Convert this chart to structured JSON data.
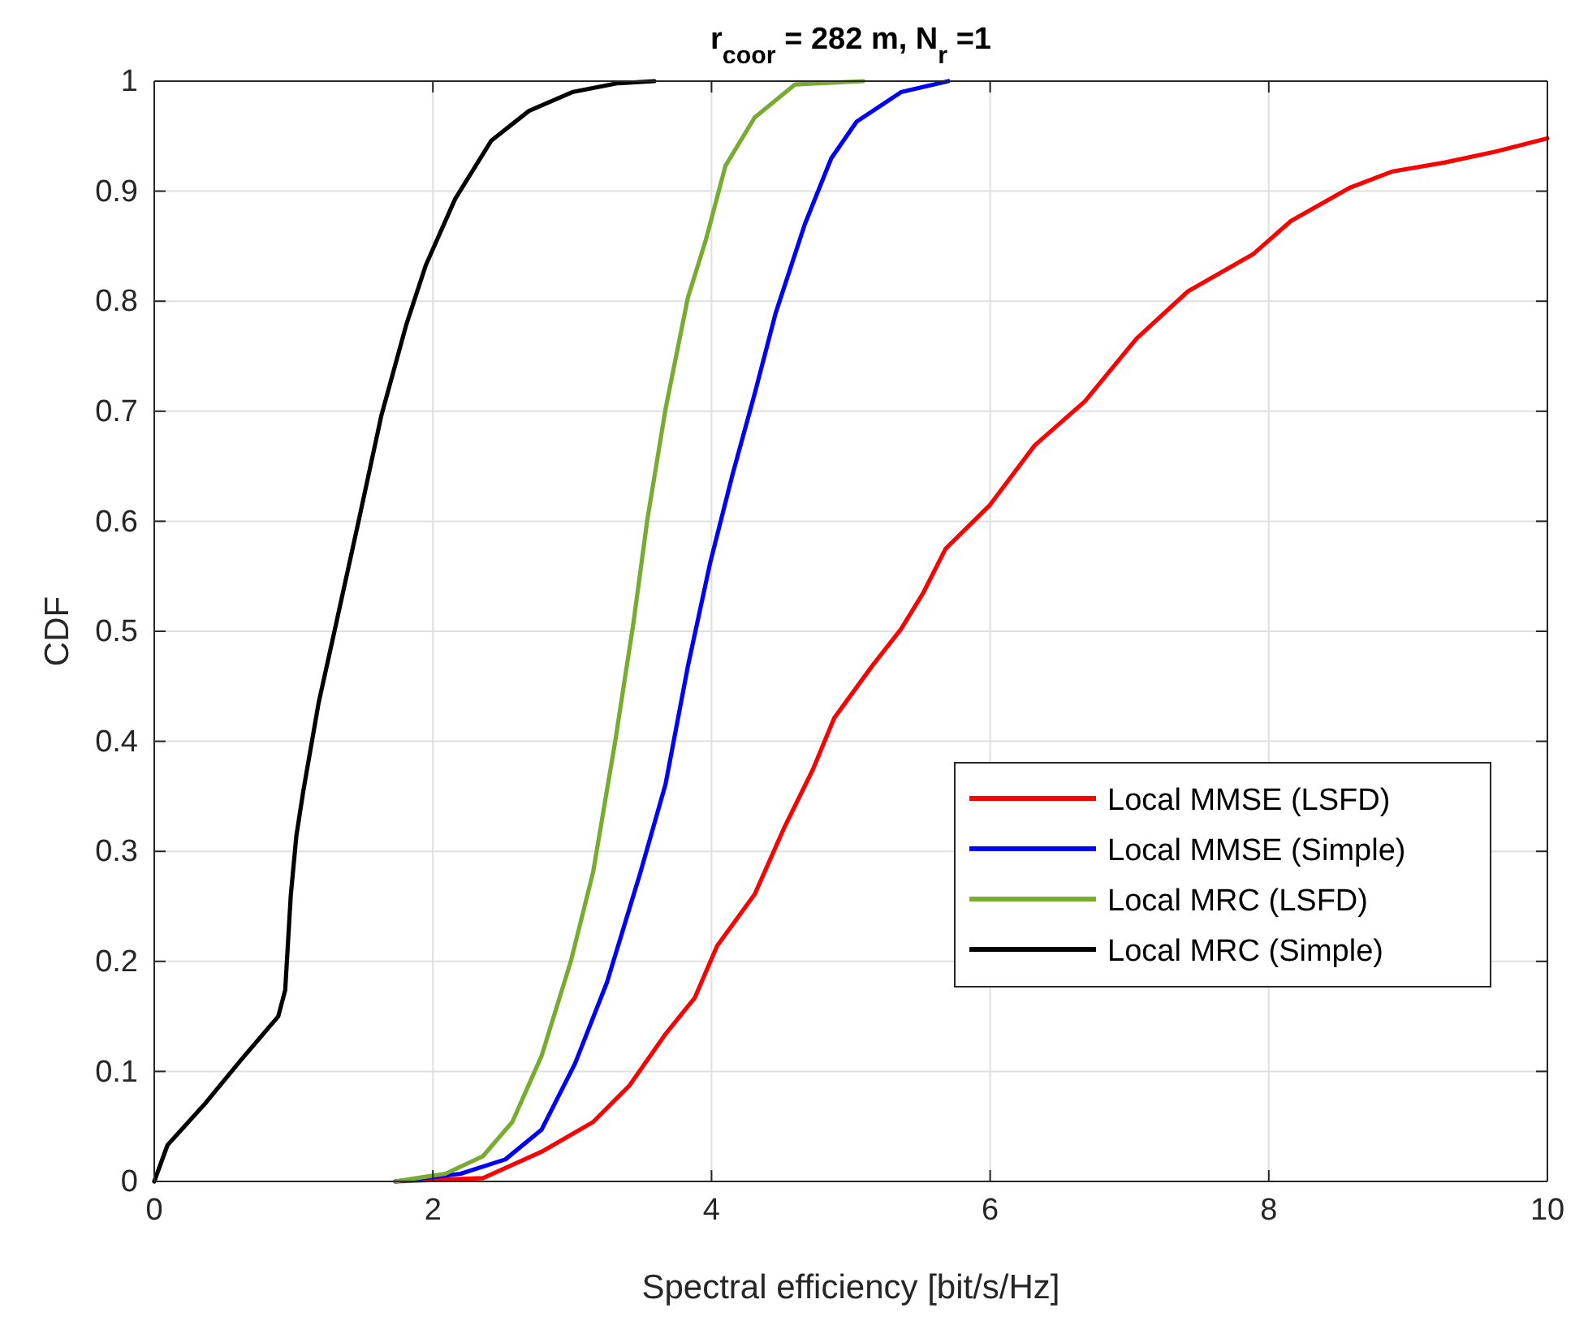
{
  "chart_data": {
    "type": "line",
    "title": "r$_{coor}$ = 282 m, N$_{r}$ =1",
    "xlabel": "Spectral efficiency [bit/s/Hz]",
    "ylabel": "CDF",
    "xlim": [
      0,
      10
    ],
    "xticks": [
      0,
      2,
      4,
      6,
      8,
      10
    ],
    "ylim": [
      0,
      1
    ],
    "yticks": [
      0,
      0.1,
      0.2,
      0.3,
      0.4,
      0.5,
      0.6,
      0.7,
      0.8,
      0.9,
      1
    ],
    "grid": true,
    "legend": "bottom right",
    "line_style": "solid",
    "marker": "none",
    "series": [
      {
        "name": "Local MMSE (LSFD)",
        "color": "#ff0000",
        "x": [
          1.73,
          2.36,
          2.78,
          3.15,
          3.41,
          3.67,
          3.88,
          4.04,
          4.31,
          4.52,
          4.73,
          4.88,
          5.15,
          5.36,
          5.52,
          5.68,
          6.0,
          6.32,
          6.68,
          7.05,
          7.42,
          7.89,
          8.16,
          8.58,
          8.89,
          9.26,
          9.63,
          10
        ],
        "values": [
          0,
          0.003,
          0.027,
          0.054,
          0.087,
          0.134,
          0.167,
          0.214,
          0.261,
          0.321,
          0.375,
          0.421,
          0.468,
          0.502,
          0.535,
          0.575,
          0.615,
          0.669,
          0.709,
          0.766,
          0.809,
          0.843,
          0.873,
          0.903,
          0.918,
          0.926,
          0.936,
          0.948
        ]
      },
      {
        "name": "Local MMSE (Simple)",
        "color": "#0000ff",
        "x": [
          1.73,
          2.2,
          2.52,
          2.78,
          3.02,
          3.25,
          3.49,
          3.67,
          3.83,
          3.99,
          4.15,
          4.31,
          4.46,
          4.67,
          4.86,
          5.04,
          5.36,
          5.7
        ],
        "values": [
          0,
          0.007,
          0.02,
          0.047,
          0.107,
          0.181,
          0.281,
          0.361,
          0.468,
          0.562,
          0.642,
          0.716,
          0.789,
          0.87,
          0.93,
          0.963,
          0.99,
          1
        ]
      },
      {
        "name": "Local MRC (LSFD)",
        "color": "#77ac30",
        "x": [
          1.73,
          2.09,
          2.36,
          2.57,
          2.78,
          2.99,
          3.15,
          3.31,
          3.44,
          3.54,
          3.67,
          3.83,
          3.96,
          4.1,
          4.31,
          4.6,
          5.09
        ],
        "values": [
          0,
          0.007,
          0.023,
          0.054,
          0.114,
          0.2,
          0.281,
          0.401,
          0.508,
          0.602,
          0.702,
          0.803,
          0.856,
          0.923,
          0.967,
          0.997,
          1
        ]
      },
      {
        "name": "Local MRC (Simple)",
        "color": "#000000",
        "x": [
          0,
          0.095,
          0.36,
          0.62,
          0.89,
          0.94,
          0.98,
          1.02,
          1.07,
          1.18,
          1.29,
          1.47,
          1.63,
          1.81,
          1.95,
          2.16,
          2.42,
          2.69,
          3.0,
          3.32,
          3.59
        ],
        "values": [
          0,
          0.033,
          0.07,
          0.11,
          0.15,
          0.174,
          0.26,
          0.314,
          0.355,
          0.435,
          0.498,
          0.602,
          0.696,
          0.779,
          0.833,
          0.893,
          0.946,
          0.973,
          0.99,
          0.998,
          1
        ]
      }
    ]
  }
}
